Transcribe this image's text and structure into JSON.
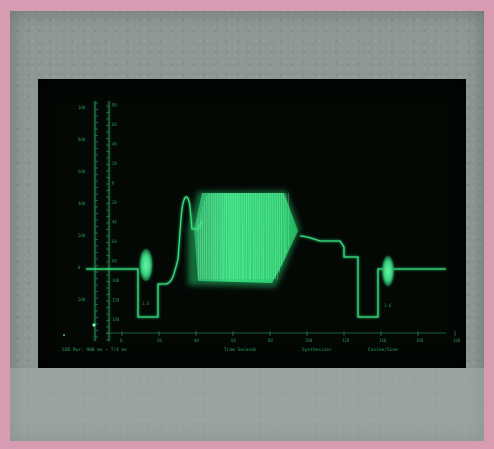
{
  "scene": {
    "subject": "oscilloscope-style display",
    "colors": {
      "background": "#d79bb2",
      "bezel": "#8d9794",
      "screen": "#040805",
      "trace": "#2ee07a",
      "trace_bright": "#44f08f"
    },
    "left_scale": {
      "outer_labels": [
        "100",
        "800",
        "600",
        "400",
        "200",
        "0",
        "200"
      ],
      "inner_labels": [
        "80",
        "60",
        "40",
        "20",
        "0",
        "20",
        "40",
        "60",
        "80",
        "100",
        "120",
        "140"
      ]
    },
    "bottom_ticks": [
      "0",
      "20",
      "40",
      "60",
      "80",
      "100",
      "120",
      "140",
      "160",
      "180"
    ],
    "bottom_text": [
      "SSB  Pwr:  900 ms  ~  T/4 ms",
      "Tram  Seconds",
      "Synthesizer",
      "Cosine/Sine"
    ],
    "marker_labels": [
      "1.6",
      "1.6"
    ]
  }
}
